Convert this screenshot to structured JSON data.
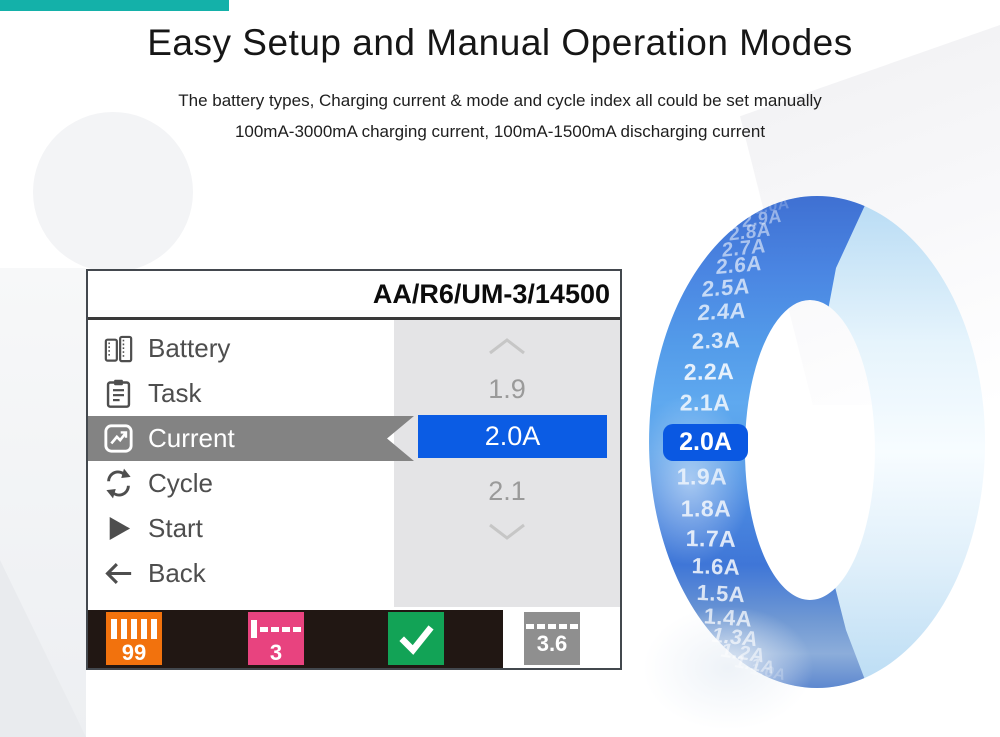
{
  "page": {
    "title": "Easy Setup and Manual Operation Modes",
    "subtitle_line1": "The battery types, Charging current & mode and cycle index all could be set manually",
    "subtitle_line2": "100mA-3000mA charging current, 100mA-1500mA discharging current",
    "accent_bar_color": "#14b1a9"
  },
  "device_screen": {
    "header": "AA/R6/UM-3/14500",
    "menu": [
      {
        "label": "Battery",
        "icon": "battery-icon",
        "selected": false
      },
      {
        "label": "Task",
        "icon": "task-icon",
        "selected": false
      },
      {
        "label": "Current",
        "icon": "current-icon",
        "selected": true
      },
      {
        "label": "Cycle",
        "icon": "cycle-icon",
        "selected": false
      },
      {
        "label": "Start",
        "icon": "start-icon",
        "selected": false
      },
      {
        "label": "Back",
        "icon": "back-icon",
        "selected": false
      }
    ],
    "value_selector": {
      "above_value": "1.9",
      "selected_value": "2.0A",
      "below_value": "2.1",
      "selected_bg": "#0b5ce4",
      "highlight_bar_color": "#838383"
    },
    "status_bar": {
      "battery_percent": "99",
      "cycle_count": "3",
      "voltage": "3.6",
      "bar_color": "#211713",
      "battery_chip_color": "#f2720d",
      "cycle_chip_color": "#e8437f",
      "ok_chip_color": "#12a356",
      "voltage_chip_color": "#8f8f8f"
    }
  },
  "dial": {
    "values": [
      "3.0A",
      "2.9A",
      "2.8A",
      "2.7A",
      "2.6A",
      "2.5A",
      "2.4A",
      "2.3A",
      "2.2A",
      "2.1A",
      "2.0A",
      "1.9A",
      "1.8A",
      "1.7A",
      "1.6A",
      "1.5A",
      "1.4A",
      "1.3A",
      "1.2A",
      "1.1A",
      "1.0A"
    ],
    "selected": "2.0A",
    "selected_color": "#0a58e2"
  }
}
